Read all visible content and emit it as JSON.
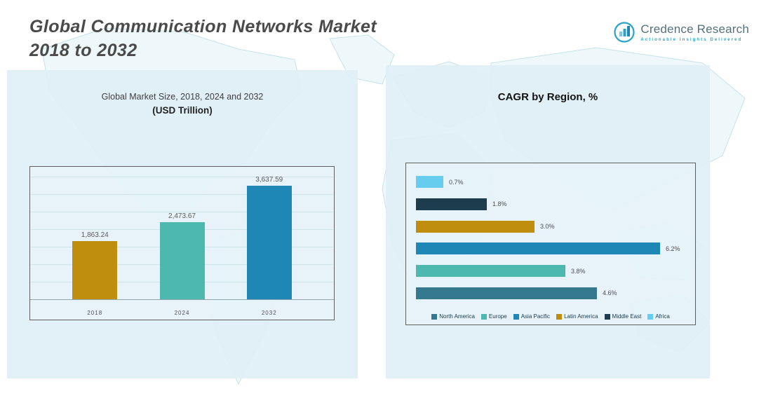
{
  "header": {
    "title_line1": "Global Communication Networks Market",
    "title_line2": "2018 to 2032",
    "logo": {
      "name": "Credence Research",
      "tagline": "Actionable Insights Delivered"
    }
  },
  "chart_data": [
    {
      "type": "bar",
      "orientation": "vertical",
      "title_line1": "Global Market Size, 2018, 2024 and 2032",
      "title_line2": "(USD Trillion)",
      "categories": [
        "2018",
        "2024",
        "2032"
      ],
      "values": [
        1863.24,
        2473.67,
        3637.59
      ],
      "value_labels": [
        "1,863.24",
        "2,473.67",
        "3,637.59"
      ],
      "colors": [
        "#bf8e0f",
        "#4db8ae",
        "#1f87b5"
      ],
      "xlabel": "",
      "ylabel": "",
      "ylim": [
        0,
        4000
      ],
      "grid": true,
      "legend_position": "none"
    },
    {
      "type": "bar",
      "orientation": "horizontal",
      "title": "CAGR by Region, %",
      "categories": [
        "Africa",
        "Middle East",
        "Latin America",
        "Asia Pacific",
        "Europe",
        "North America"
      ],
      "values": [
        0.7,
        1.8,
        3.0,
        6.2,
        3.8,
        4.6
      ],
      "value_labels": [
        "0.7%",
        "1.8%",
        "3.0%",
        "6.2%",
        "3.8%",
        "4.6%"
      ],
      "colors": [
        "#66cdee",
        "#1d3c4e",
        "#bf8e0f",
        "#1f87b5",
        "#4db8ae",
        "#35798e"
      ],
      "xlim": [
        0,
        6.8
      ],
      "grid": false,
      "legend_position": "bottom-inside",
      "legend": [
        {
          "label": "North America",
          "color": "#35798e"
        },
        {
          "label": "Europe",
          "color": "#4db8ae"
        },
        {
          "label": "Asia Pacific",
          "color": "#1f87b5"
        },
        {
          "label": "Latin America",
          "color": "#bf8e0f"
        },
        {
          "label": "Middle East",
          "color": "#1d3c4e"
        },
        {
          "label": "Africa",
          "color": "#66cdee"
        }
      ]
    }
  ]
}
